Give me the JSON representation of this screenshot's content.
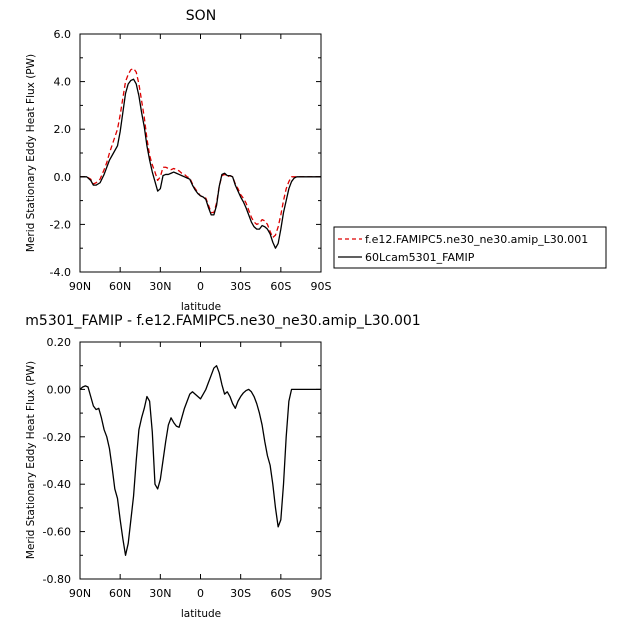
{
  "chart_data": [
    {
      "type": "line",
      "title": "SON",
      "xlabel": "latitude",
      "ylabel": "Merid Stationary Eddy Heat Flux (PW)",
      "xlim": [
        90,
        -90
      ],
      "ylim": [
        -4.0,
        6.0
      ],
      "xticks": [
        90,
        60,
        30,
        0,
        -30,
        -60,
        -90
      ],
      "xtick_labels": [
        "90N",
        "60N",
        "30N",
        "0",
        "30S",
        "60S",
        "90S"
      ],
      "yticks": [
        -4,
        -2,
        0,
        2,
        4,
        6
      ],
      "ytick_labels": [
        "-4.0",
        "-2.0",
        "0.0",
        "2.0",
        "4.0",
        "6.0"
      ],
      "legend_position": "right",
      "series": [
        {
          "name": "f.e12.FAMIPC5.ne30_ne30.amip_L30.001",
          "color": "#dd0000",
          "style": "dashed",
          "x": [
            90,
            85,
            82,
            80,
            78,
            75,
            72,
            70,
            68,
            65,
            62,
            60,
            58,
            56,
            54,
            52,
            50,
            48,
            46,
            44,
            42,
            40,
            38,
            36,
            34,
            32,
            30,
            28,
            26,
            24,
            22,
            20,
            18,
            16,
            14,
            12,
            10,
            8,
            6,
            4,
            2,
            0,
            -2,
            -4,
            -6,
            -8,
            -10,
            -12,
            -14,
            -16,
            -18,
            -20,
            -22,
            -24,
            -26,
            -28,
            -30,
            -32,
            -34,
            -36,
            -38,
            -40,
            -42,
            -44,
            -46,
            -48,
            -50,
            -52,
            -54,
            -56,
            -58,
            -60,
            -62,
            -64,
            -66,
            -68,
            -70,
            -72,
            -74,
            -76,
            -78,
            -80,
            -82,
            -84,
            -86,
            -88,
            -90
          ],
          "values": [
            0.0,
            0.0,
            -0.1,
            -0.3,
            -0.25,
            -0.1,
            0.3,
            0.6,
            1.0,
            1.5,
            2.0,
            2.6,
            3.3,
            4.0,
            4.3,
            4.5,
            4.55,
            4.4,
            3.9,
            3.2,
            2.5,
            1.6,
            0.9,
            0.5,
            0.2,
            -0.15,
            0.0,
            0.4,
            0.4,
            0.35,
            0.3,
            0.35,
            0.3,
            0.25,
            0.15,
            0.1,
            0.0,
            -0.05,
            -0.3,
            -0.5,
            -0.65,
            -0.8,
            -0.85,
            -0.9,
            -1.2,
            -1.5,
            -1.5,
            -1.1,
            -0.4,
            0.05,
            0.1,
            0.0,
            0.05,
            0.0,
            -0.3,
            -0.5,
            -0.75,
            -0.9,
            -1.1,
            -1.4,
            -1.7,
            -1.9,
            -2.0,
            -1.95,
            -1.8,
            -1.85,
            -2.0,
            -2.3,
            -2.55,
            -2.45,
            -2.1,
            -1.6,
            -1.0,
            -0.5,
            -0.2,
            0.0,
            0.0,
            0.0,
            0.0,
            0.0,
            0.0,
            0.0,
            0.0,
            0.0,
            0.0,
            0.0,
            0.0
          ]
        },
        {
          "name": "60Lcam5301_FAMIP",
          "color": "#000000",
          "style": "solid",
          "x": [
            90,
            85,
            82,
            80,
            78,
            75,
            72,
            70,
            68,
            65,
            62,
            60,
            58,
            56,
            54,
            52,
            50,
            48,
            46,
            44,
            42,
            40,
            38,
            36,
            34,
            32,
            30,
            28,
            26,
            24,
            22,
            20,
            18,
            16,
            14,
            12,
            10,
            8,
            6,
            4,
            2,
            0,
            -2,
            -4,
            -6,
            -8,
            -10,
            -12,
            -14,
            -16,
            -18,
            -20,
            -22,
            -24,
            -26,
            -28,
            -30,
            -32,
            -34,
            -36,
            -38,
            -40,
            -42,
            -44,
            -46,
            -48,
            -50,
            -52,
            -54,
            -56,
            -58,
            -60,
            -62,
            -64,
            -66,
            -68,
            -70,
            -72,
            -74,
            -76,
            -78,
            -80,
            -82,
            -84,
            -86,
            -88,
            -90
          ],
          "values": [
            0.0,
            0.0,
            -0.15,
            -0.35,
            -0.35,
            -0.25,
            0.1,
            0.4,
            0.7,
            1.0,
            1.3,
            1.9,
            2.7,
            3.5,
            3.9,
            4.05,
            4.1,
            3.9,
            3.4,
            2.7,
            2.1,
            1.3,
            0.7,
            0.2,
            -0.2,
            -0.6,
            -0.5,
            0.05,
            0.1,
            0.1,
            0.15,
            0.2,
            0.15,
            0.1,
            0.05,
            0.0,
            -0.05,
            -0.1,
            -0.35,
            -0.55,
            -0.7,
            -0.8,
            -0.85,
            -0.95,
            -1.3,
            -1.6,
            -1.6,
            -1.2,
            -0.4,
            0.1,
            0.15,
            0.05,
            0.05,
            0.0,
            -0.35,
            -0.6,
            -0.85,
            -1.05,
            -1.3,
            -1.6,
            -1.9,
            -2.1,
            -2.2,
            -2.2,
            -2.05,
            -2.1,
            -2.2,
            -2.4,
            -2.75,
            -3.0,
            -2.8,
            -2.2,
            -1.5,
            -1.0,
            -0.5,
            -0.2,
            -0.05,
            0.0,
            0.0,
            0.0,
            0.0,
            0.0,
            0.0,
            0.0,
            0.0,
            0.0,
            0.0
          ]
        }
      ]
    },
    {
      "type": "line",
      "title": "m5301_FAMIP - f.e12.FAMIPC5.ne30_ne30.amip_L30.001",
      "xlabel": "latitude",
      "ylabel": "Merid Stationary Eddy Heat Flux (PW)",
      "xlim": [
        90,
        -90
      ],
      "ylim": [
        -0.8,
        0.2
      ],
      "xticks": [
        90,
        60,
        30,
        0,
        -30,
        -60,
        -90
      ],
      "xtick_labels": [
        "90N",
        "60N",
        "30N",
        "0",
        "30S",
        "60S",
        "90S"
      ],
      "yticks": [
        -0.8,
        -0.6,
        -0.4,
        -0.2,
        0.0,
        0.2
      ],
      "ytick_labels": [
        "-0.80",
        "-0.60",
        "-0.40",
        "-0.20",
        "0.00",
        "0.20"
      ],
      "series": [
        {
          "color": "#000000",
          "style": "solid",
          "x": [
            90,
            88,
            86,
            84,
            82,
            80,
            78,
            76,
            74,
            72,
            70,
            68,
            66,
            64,
            62,
            60,
            58,
            56,
            54,
            52,
            50,
            48,
            46,
            44,
            42,
            40,
            38,
            36,
            34,
            32,
            30,
            28,
            26,
            24,
            22,
            20,
            18,
            16,
            14,
            12,
            10,
            8,
            6,
            4,
            2,
            0,
            -2,
            -4,
            -6,
            -8,
            -10,
            -12,
            -14,
            -16,
            -18,
            -20,
            -22,
            -24,
            -26,
            -28,
            -30,
            -32,
            -34,
            -36,
            -38,
            -40,
            -42,
            -44,
            -46,
            -48,
            -50,
            -52,
            -54,
            -56,
            -58,
            -60,
            -62,
            -64,
            -66,
            -68,
            -70,
            -72,
            -74,
            -76,
            -78,
            -80,
            -82,
            -84,
            -86,
            -88,
            -90
          ],
          "values": [
            0.0,
            0.01,
            0.015,
            0.01,
            -0.03,
            -0.07,
            -0.085,
            -0.08,
            -0.12,
            -0.17,
            -0.2,
            -0.25,
            -0.33,
            -0.42,
            -0.46,
            -0.55,
            -0.63,
            -0.7,
            -0.65,
            -0.55,
            -0.45,
            -0.3,
            -0.17,
            -0.12,
            -0.08,
            -0.03,
            -0.05,
            -0.18,
            -0.4,
            -0.42,
            -0.38,
            -0.3,
            -0.22,
            -0.15,
            -0.12,
            -0.14,
            -0.155,
            -0.16,
            -0.12,
            -0.08,
            -0.05,
            -0.02,
            -0.01,
            -0.02,
            -0.03,
            -0.04,
            -0.02,
            0.0,
            0.03,
            0.06,
            0.09,
            0.1,
            0.07,
            0.02,
            -0.02,
            -0.01,
            -0.03,
            -0.06,
            -0.08,
            -0.05,
            -0.03,
            -0.015,
            -0.005,
            0.0,
            -0.01,
            -0.03,
            -0.06,
            -0.1,
            -0.15,
            -0.22,
            -0.28,
            -0.32,
            -0.4,
            -0.5,
            -0.58,
            -0.55,
            -0.4,
            -0.2,
            -0.05,
            0.0,
            0.0,
            0.0,
            0.0,
            0.0,
            0.0,
            0.0,
            0.0,
            0.0,
            0.0,
            0.0,
            0.0
          ]
        }
      ]
    }
  ]
}
